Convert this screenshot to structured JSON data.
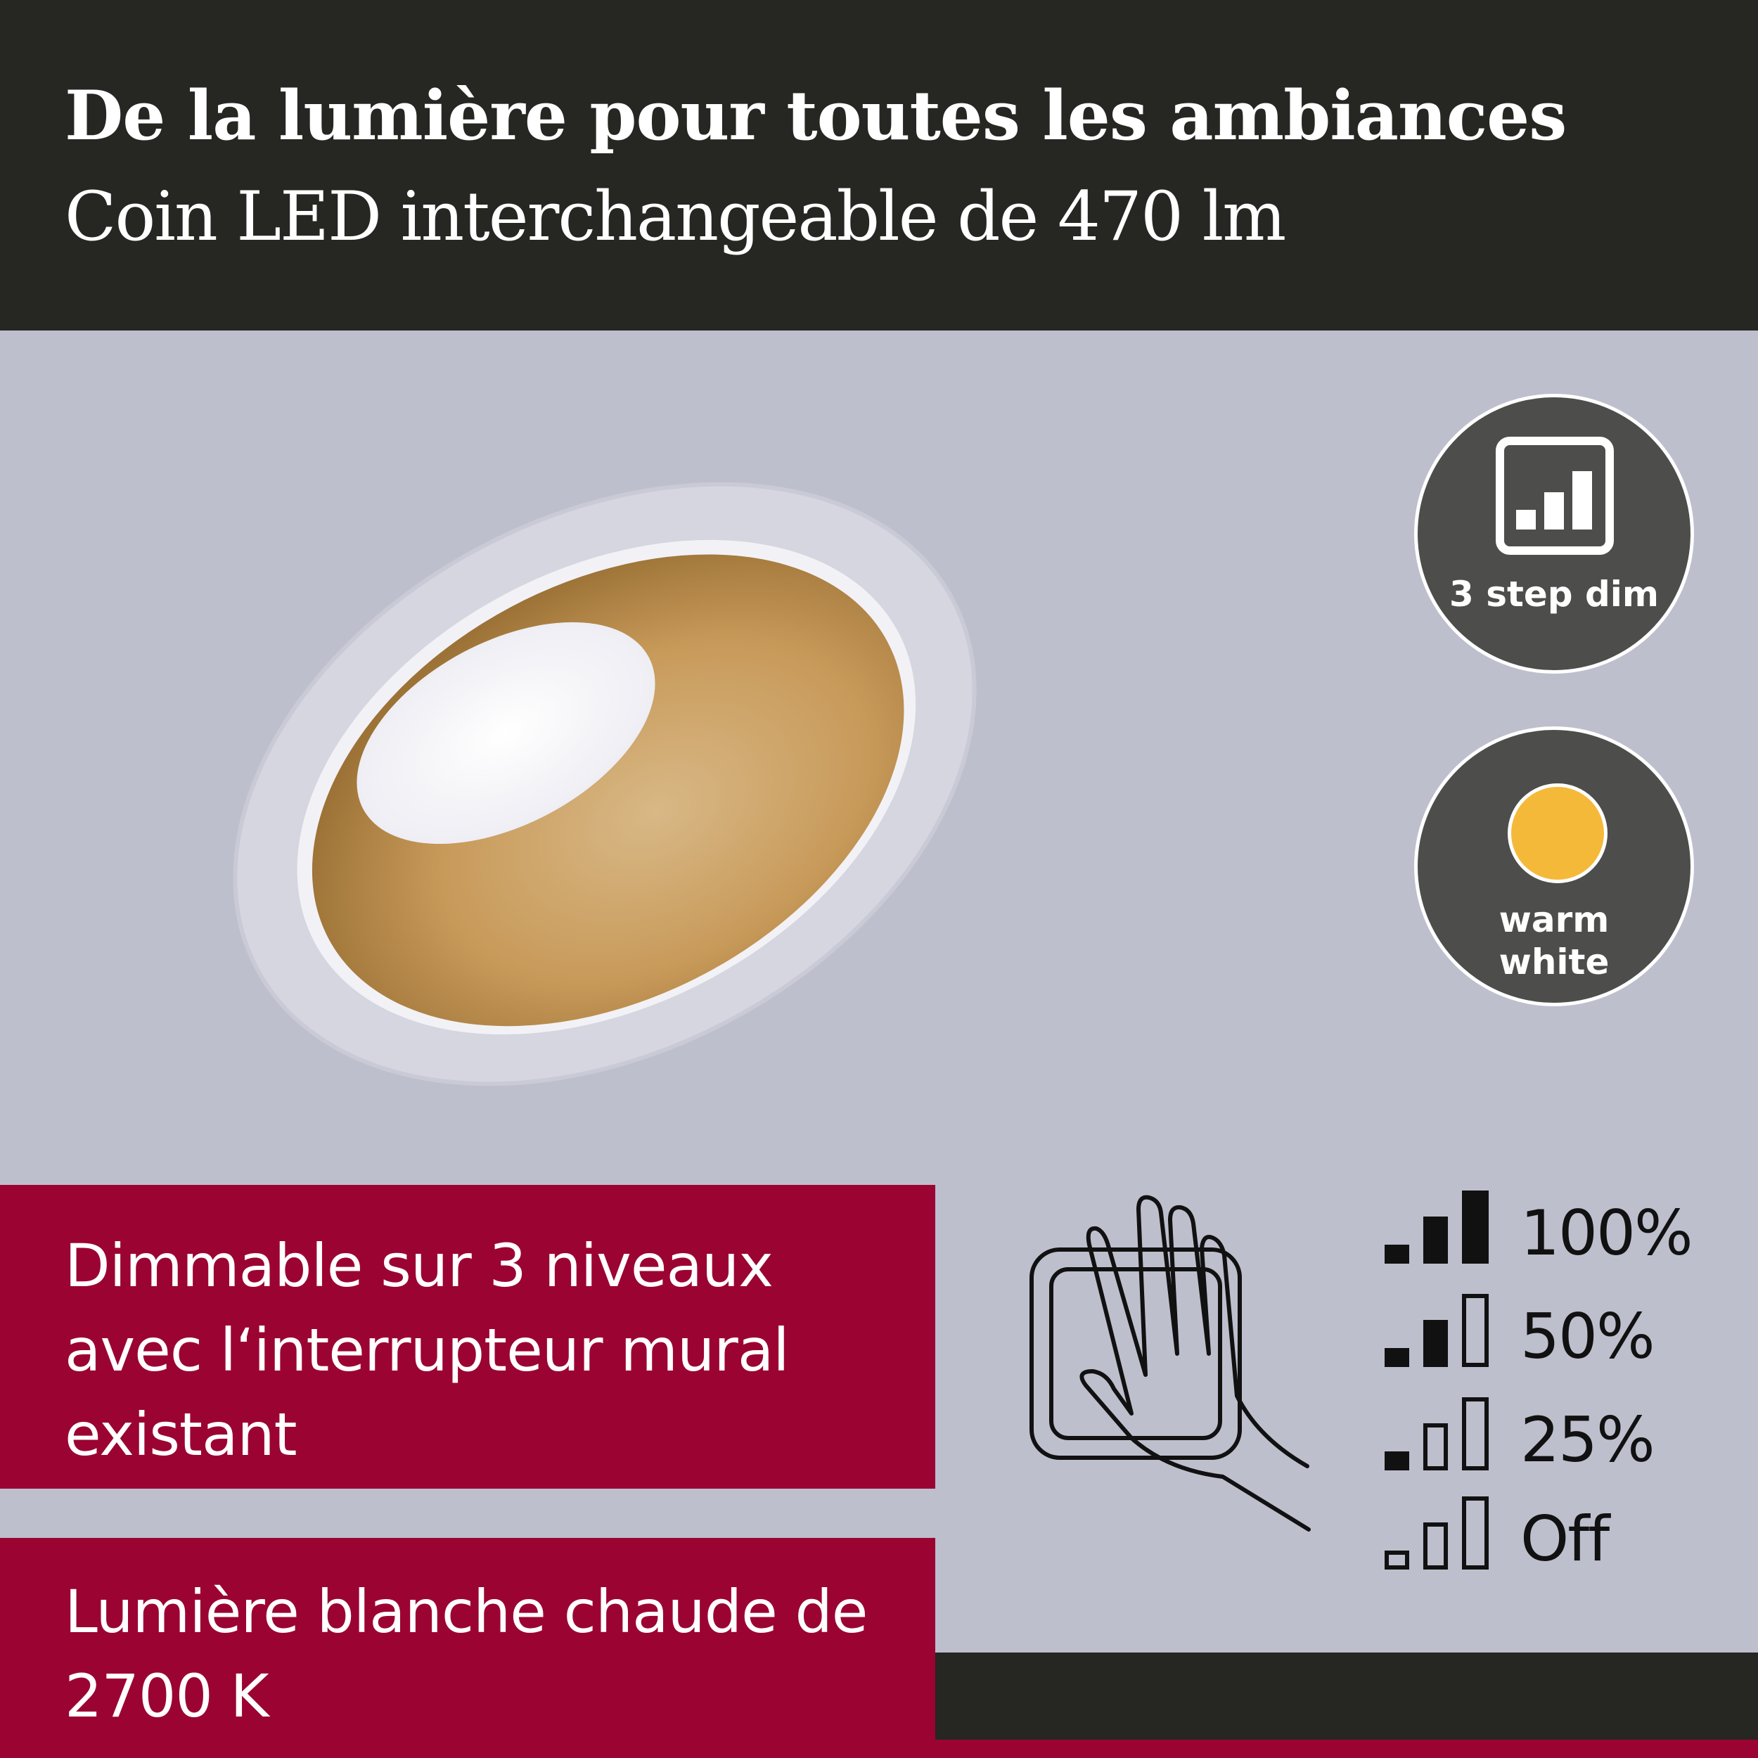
{
  "header": {
    "title": "De la lumière pour toutes les ambiances",
    "subtitle": "Coin LED interchangeable de 470 lm"
  },
  "badges": [
    {
      "icon": "dimmer-bars-icon",
      "label": "3 step dim"
    },
    {
      "icon": "warm-light-dot-icon",
      "label_line1": "warm",
      "label_line2": "white",
      "dot_color": "#f5b93a"
    }
  ],
  "features": [
    {
      "lines": [
        "Dimmable sur 3 niveaux",
        "avec l‘interrupteur mural",
        "existant"
      ]
    },
    {
      "lines": [
        "Lumière blanche chaude de",
        "2700 K"
      ]
    }
  ],
  "dim_levels": [
    {
      "label": "100%",
      "filled": 3
    },
    {
      "label": "50%",
      "filled": 2
    },
    {
      "label": "25%",
      "filled": 1
    },
    {
      "label": "Off",
      "filled": 0
    }
  ],
  "colors": {
    "header": "#262622",
    "accent": "#9b0432",
    "background": "#bdbfcd",
    "badge": "#4d4d4b"
  }
}
